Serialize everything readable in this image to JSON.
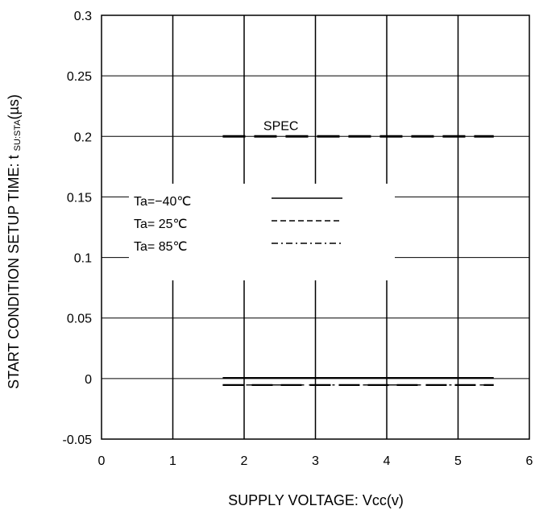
{
  "chart_data": {
    "type": "line",
    "title": "",
    "xlabel": "SUPPLY VOLTAGE: Vcc(v)",
    "ylabel_main": "START CONDITION SETUP TIME: t ",
    "ylabel_sub": "SU:STA",
    "ylabel_unit": "(µs)",
    "xlim": [
      0,
      6
    ],
    "ylim": [
      -0.05,
      0.3
    ],
    "x_ticks": [
      "0",
      "1",
      "2",
      "3",
      "4",
      "5",
      "6"
    ],
    "x_tick_values": [
      0,
      1,
      2,
      3,
      4,
      5,
      6
    ],
    "y_ticks": [
      "0.3",
      "0.25",
      "0.2",
      "0.15",
      "0.1",
      "0.05",
      "0",
      "-0.05"
    ],
    "y_tick_values": [
      0.3,
      0.25,
      0.2,
      0.15,
      0.1,
      0.05,
      0,
      -0.05
    ],
    "grid": true,
    "legend_position": "left",
    "spec": {
      "label": "SPEC",
      "x": [
        1.7,
        5.5
      ],
      "y": [
        0.2,
        0.2
      ],
      "color": "#000000"
    },
    "series": [
      {
        "name": "Ta=−40℃",
        "x": [
          1.7,
          5.5
        ],
        "y": [
          0.0,
          0.0
        ],
        "style": "solid",
        "color": "#000000"
      },
      {
        "name": "Ta= 25℃",
        "x": [
          1.7,
          5.5
        ],
        "y": [
          0.0,
          0.0
        ],
        "style": "dashed",
        "color": "#000000"
      },
      {
        "name": "Ta= 85℃",
        "x": [
          1.7,
          5.5
        ],
        "y": [
          0.0,
          0.0
        ],
        "style": "dashdot",
        "color": "#000000"
      }
    ]
  }
}
